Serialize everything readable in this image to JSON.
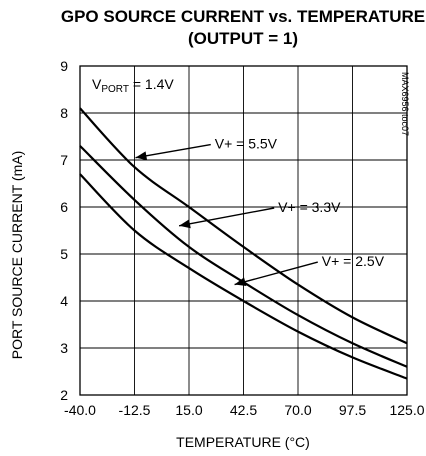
{
  "chart_data": {
    "type": "line",
    "title": "GPO SOURCE CURRENT vs. TEMPERATURE",
    "subtitle": "(OUTPUT = 1)",
    "xlabel": "TEMPERATURE (°C)",
    "ylabel": "PORT SOURCE CURRENT (mA)",
    "xlim": [
      -40,
      125
    ],
    "ylim": [
      2,
      9
    ],
    "x_ticks": [
      -40,
      -12.5,
      15,
      42.5,
      70,
      97.5,
      125
    ],
    "x_tick_labels": [
      "-40.0",
      "-12.5",
      "15.0",
      "42.5",
      "70.0",
      "97.5",
      "125.0"
    ],
    "y_ticks": [
      2,
      3,
      4,
      5,
      6,
      7,
      8,
      9
    ],
    "y_tick_labels": [
      "2",
      "3",
      "4",
      "5",
      "6",
      "7",
      "8",
      "9"
    ],
    "grid": true,
    "watermark": "MAX6956 toc07",
    "condition_label_main": "V",
    "condition_label_sub": "PORT",
    "condition_label_value": " = 1.4V",
    "series": [
      {
        "name": "V+ = 5.5V",
        "x": [
          -40,
          -12.5,
          15,
          42.5,
          70,
          97.5,
          125
        ],
        "y": [
          8.1,
          6.85,
          6.0,
          5.15,
          4.35,
          3.65,
          3.1
        ]
      },
      {
        "name": "V+ = 3.3V",
        "x": [
          -40,
          -12.5,
          15,
          42.5,
          70,
          97.5,
          125
        ],
        "y": [
          7.3,
          6.15,
          5.15,
          4.4,
          3.7,
          3.1,
          2.6
        ]
      },
      {
        "name": "V+ = 2.5V",
        "x": [
          -40,
          -12.5,
          15,
          42.5,
          70,
          97.5,
          125
        ],
        "y": [
          6.7,
          5.5,
          4.7,
          4.0,
          3.35,
          2.8,
          2.35
        ]
      }
    ],
    "annotations": [
      {
        "text": "V+ = 5.5V",
        "series": 0,
        "x": -12,
        "y": 7.05,
        "text_x": 28,
        "text_y": 7.35
      },
      {
        "text": "V+ = 3.3V",
        "series": 1,
        "x": 10,
        "y": 5.6,
        "text_x": 60,
        "text_y": 6.0
      },
      {
        "text": "V+ = 2.5V",
        "series": 2,
        "x": 38,
        "y": 4.35,
        "text_x": 82,
        "text_y": 4.85
      }
    ]
  }
}
